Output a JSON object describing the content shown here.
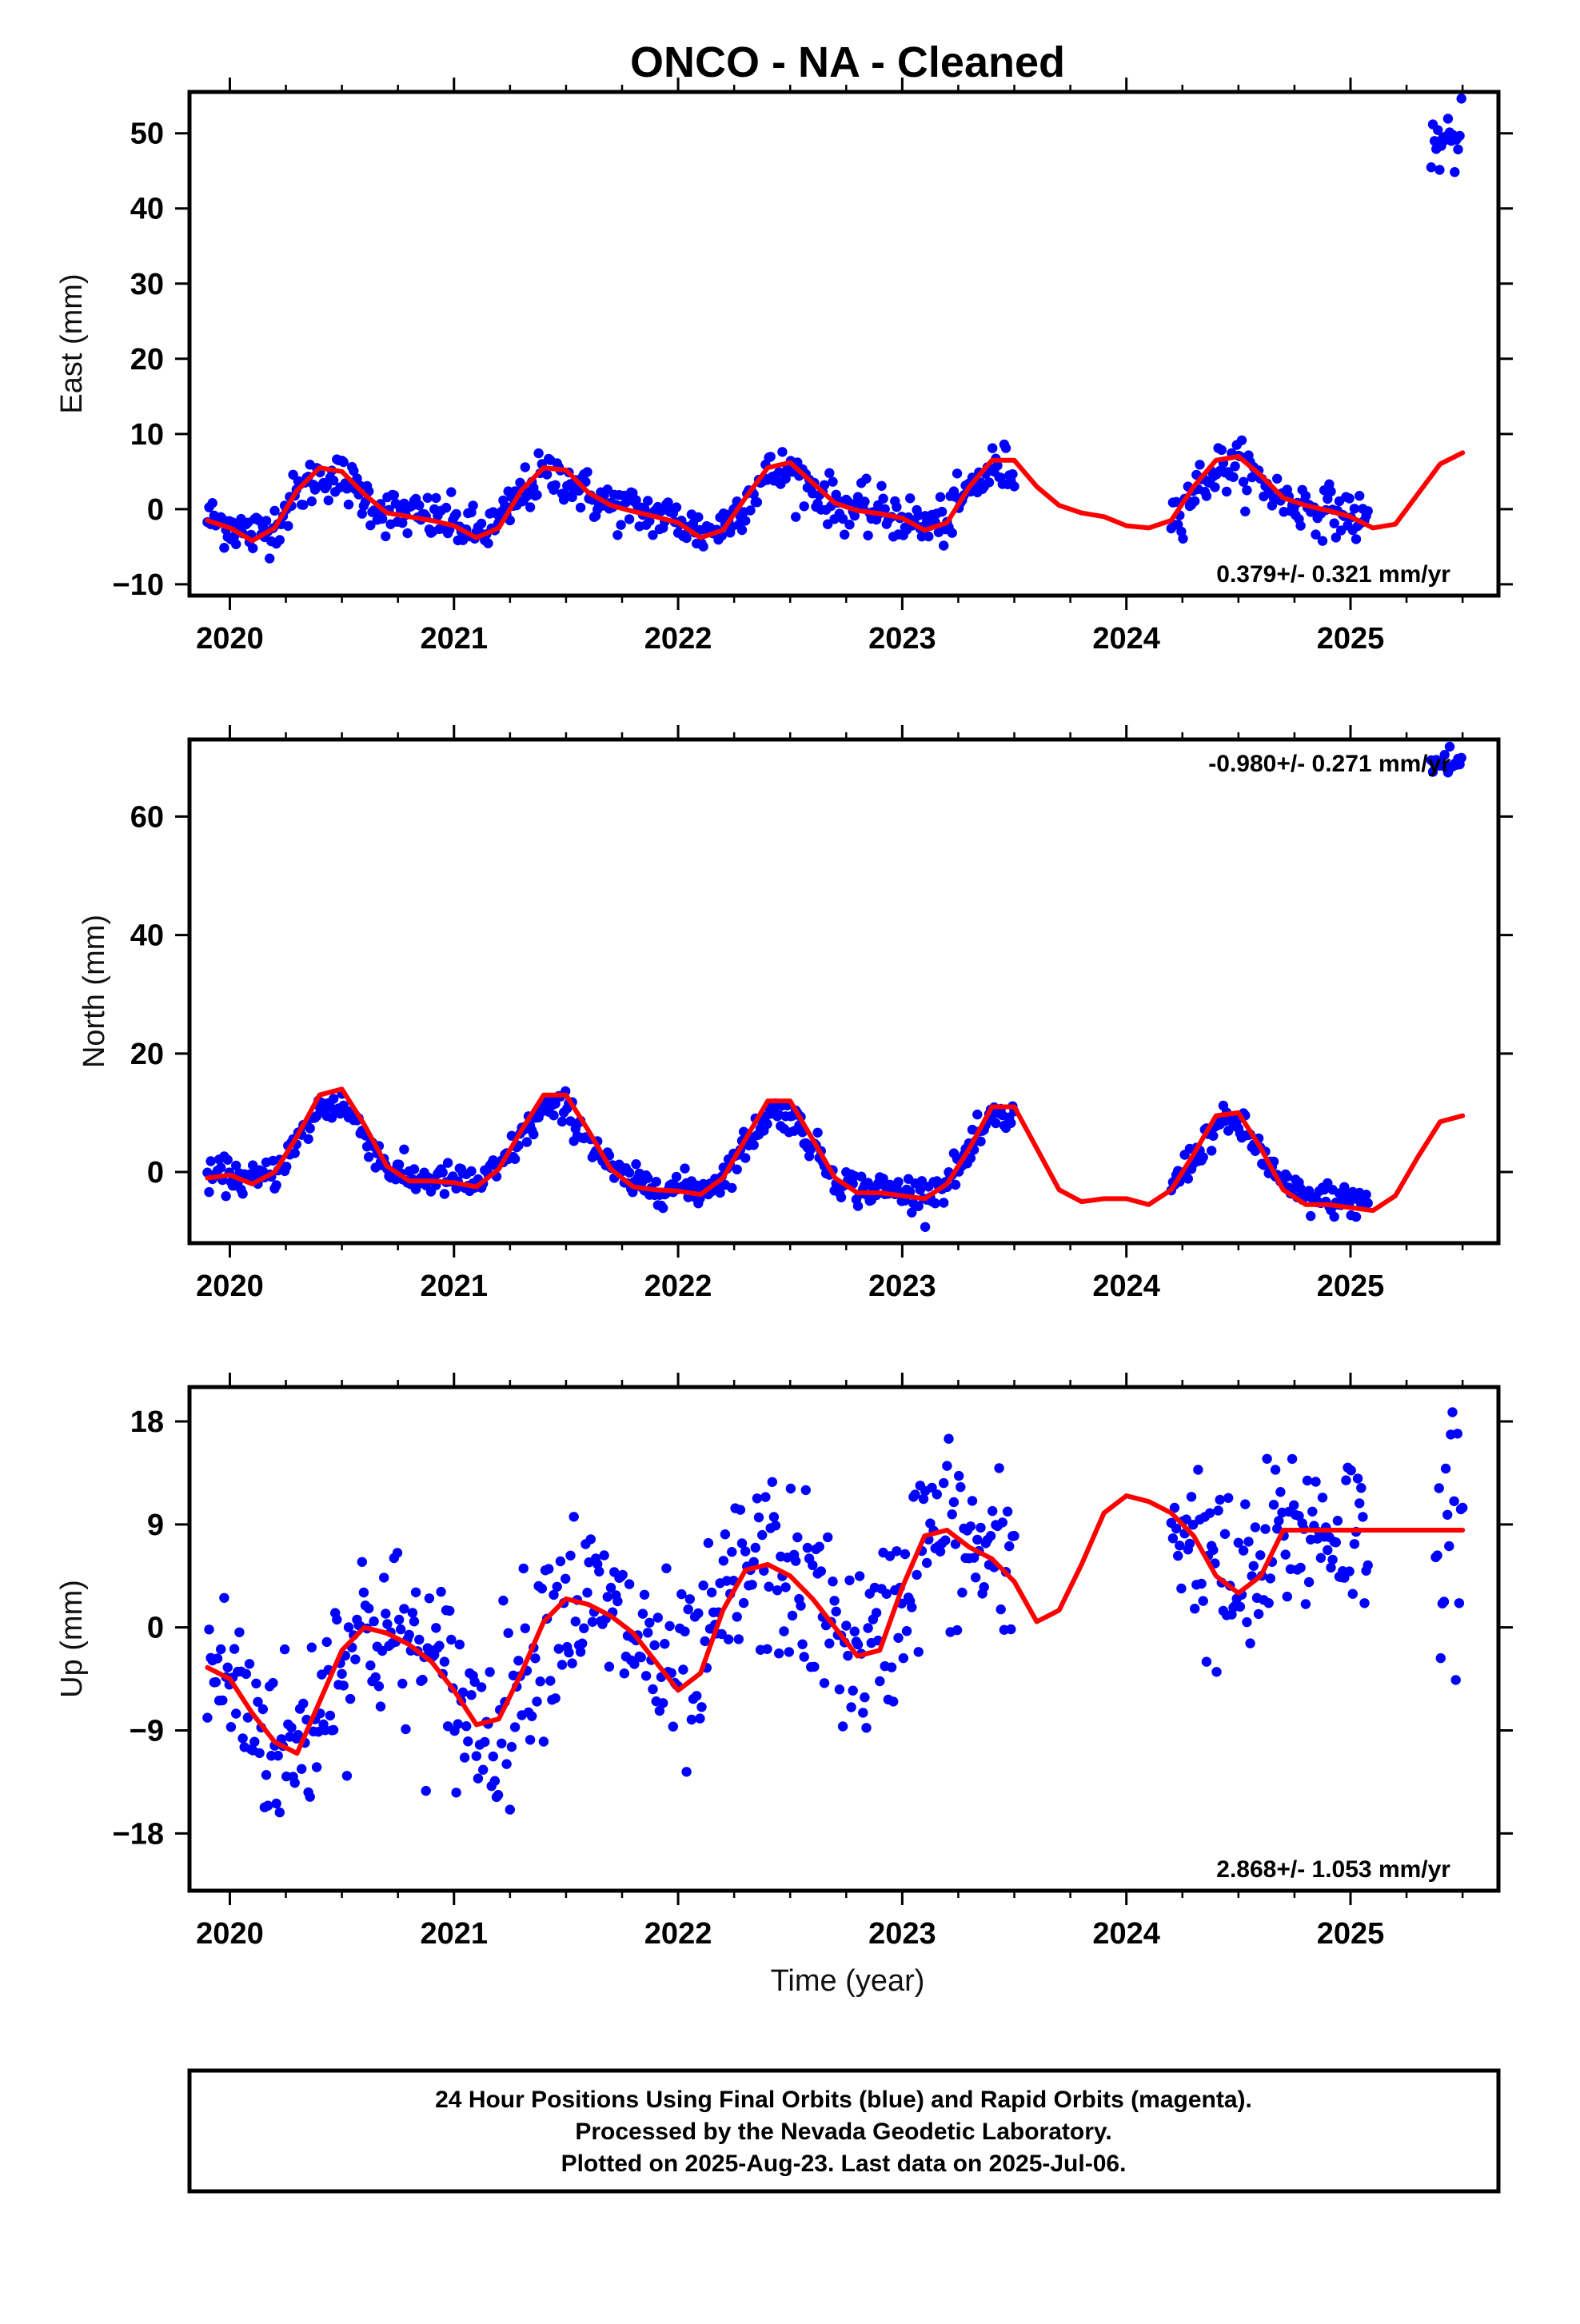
{
  "title": "ONCO  - NA - Cleaned",
  "xlabel": "Time (year)",
  "footer": {
    "lines": [
      "24 Hour Positions Using Final Orbits (blue) and Rapid Orbits (magenta).",
      "Processed by the Nevada Geodetic Laboratory.",
      "Plotted on 2025-Aug-23. Last data on 2025-Jul-06."
    ]
  },
  "colors": {
    "data": "#0000ff",
    "model": "#ff0000",
    "frame": "#000000"
  },
  "chart_data": [
    {
      "type": "scatter",
      "ylabel": "East (mm)",
      "rate_text": "0.379+/- 0.321 mm/yr",
      "rate_position": "bottom-right",
      "xlim": [
        2019.82,
        2025.66
      ],
      "ylim": [
        -11.5,
        55.5
      ],
      "xticks": [
        2020,
        2021,
        2022,
        2023,
        2024,
        2025
      ],
      "yticks": [
        -10,
        0,
        10,
        20,
        30,
        40,
        50
      ],
      "ytick_labels": [
        "−10",
        "0",
        "10",
        "20",
        "30",
        "40",
        "50"
      ],
      "model": {
        "x": [
          2019.9,
          2020.0,
          2020.1,
          2020.2,
          2020.3,
          2020.4,
          2020.5,
          2020.6,
          2020.7,
          2020.8,
          2020.9,
          2021.0,
          2021.1,
          2021.2,
          2021.3,
          2021.4,
          2021.5,
          2021.6,
          2021.7,
          2021.8,
          2021.9,
          2022.0,
          2022.1,
          2022.2,
          2022.3,
          2022.4,
          2022.5,
          2022.6,
          2022.7,
          2022.8,
          2022.9,
          2023.0,
          2023.1,
          2023.2,
          2023.3,
          2023.4,
          2023.5,
          2023.6,
          2023.7,
          2023.8,
          2023.9,
          2024.0,
          2024.1,
          2024.2,
          2024.3,
          2024.4,
          2024.5,
          2024.6,
          2024.7,
          2024.8,
          2024.9,
          2025.0,
          2025.1,
          2025.2,
          2025.3,
          2025.4,
          2025.5
        ],
        "y": [
          -1.5,
          -2.5,
          -4.2,
          -2.5,
          2.5,
          5.5,
          5.0,
          2.0,
          -0.5,
          -1.0,
          -1.5,
          -2.2,
          -3.8,
          -2.5,
          2.5,
          5.5,
          5.2,
          2.2,
          0.5,
          -0.3,
          -1.0,
          -1.8,
          -3.8,
          -2.8,
          1.5,
          5.5,
          6.2,
          3.5,
          0.8,
          -0.2,
          -0.6,
          -1.2,
          -2.8,
          -1.8,
          3.0,
          6.5,
          6.5,
          3.0,
          0.5,
          -0.5,
          -1.0,
          -2.2,
          -2.5,
          -1.5,
          3.0,
          6.5,
          7.0,
          4.5,
          1.5,
          0.5,
          -0.2,
          -1.0,
          -2.5,
          -2.0,
          2.0,
          6.0,
          7.5
        ]
      },
      "series": [
        {
          "name": "Final Orbits",
          "color": "#0000ff",
          "sigma": 1.6,
          "segments": [
            [
              2019.9,
              2023.5
            ],
            [
              2024.2,
              2025.08
            ]
          ]
        },
        {
          "name": "Rapid Orbits",
          "color": "#0000ff",
          "sigma": 2.4,
          "segments": [
            [
              2025.36,
              2025.5
            ]
          ],
          "level": 49
        }
      ]
    },
    {
      "type": "scatter",
      "ylabel": "North (mm)",
      "rate_text": "-0.980+/- 0.271 mm/yr",
      "rate_position": "top-right",
      "xlim": [
        2019.82,
        2025.66
      ],
      "ylim": [
        -12,
        73
      ],
      "xticks": [
        2020,
        2021,
        2022,
        2023,
        2024,
        2025
      ],
      "yticks": [
        0,
        20,
        40,
        60
      ],
      "ytick_labels": [
        "0",
        "20",
        "40",
        "60"
      ],
      "model": {
        "x": [
          2019.9,
          2020.0,
          2020.1,
          2020.2,
          2020.3,
          2020.4,
          2020.5,
          2020.6,
          2020.7,
          2020.8,
          2020.9,
          2021.0,
          2021.1,
          2021.2,
          2021.3,
          2021.4,
          2021.5,
          2021.6,
          2021.7,
          2021.8,
          2021.9,
          2022.0,
          2022.1,
          2022.2,
          2022.3,
          2022.4,
          2022.5,
          2022.6,
          2022.7,
          2022.8,
          2022.9,
          2023.0,
          2023.1,
          2023.2,
          2023.3,
          2023.4,
          2023.5,
          2023.6,
          2023.7,
          2023.8,
          2023.9,
          2024.0,
          2024.1,
          2024.2,
          2024.3,
          2024.4,
          2024.5,
          2024.6,
          2024.7,
          2024.8,
          2024.9,
          2025.0,
          2025.1,
          2025.2,
          2025.3,
          2025.4,
          2025.5
        ],
        "y": [
          -1.0,
          -0.5,
          -2.0,
          0.0,
          6.0,
          13.0,
          14.0,
          8.0,
          1.0,
          -1.5,
          -1.5,
          -1.8,
          -2.5,
          0.5,
          7.0,
          13.0,
          13.0,
          7.0,
          0.5,
          -2.5,
          -3.0,
          -3.2,
          -3.8,
          -1.0,
          5.5,
          12.0,
          12.0,
          5.5,
          -1.0,
          -3.5,
          -3.5,
          -4.0,
          -4.5,
          -2.0,
          4.0,
          11.0,
          11.0,
          4.0,
          -3.0,
          -5.0,
          -4.5,
          -4.5,
          -5.5,
          -3.0,
          3.0,
          9.5,
          10.0,
          4.0,
          -3.0,
          -5.5,
          -5.5,
          -6.0,
          -6.5,
          -4.0,
          2.5,
          8.5,
          9.5
        ]
      },
      "series": [
        {
          "name": "Final Orbits",
          "color": "#0000ff",
          "sigma": 1.4,
          "segments": [
            [
              2019.9,
              2023.5
            ],
            [
              2024.2,
              2025.08
            ]
          ]
        },
        {
          "name": "Rapid Orbits",
          "color": "#0000ff",
          "sigma": 1.6,
          "segments": [
            [
              2025.36,
              2025.5
            ]
          ],
          "level": 69
        }
      ]
    },
    {
      "type": "scatter",
      "ylabel": "Up (mm)",
      "rate_text": "2.868+/- 1.053 mm/yr",
      "rate_position": "bottom-right",
      "xlim": [
        2019.82,
        2025.66
      ],
      "ylim": [
        -23,
        21
      ],
      "xticks": [
        2020,
        2021,
        2022,
        2023,
        2024,
        2025
      ],
      "yticks": [
        -18,
        -9,
        0,
        9,
        18
      ],
      "ytick_labels": [
        "−18",
        "−9",
        "0",
        "9",
        "18"
      ],
      "model": {
        "x": [
          2019.9,
          2020.0,
          2020.1,
          2020.2,
          2020.3,
          2020.4,
          2020.5,
          2020.6,
          2020.7,
          2020.8,
          2020.9,
          2021.0,
          2021.1,
          2021.2,
          2021.3,
          2021.4,
          2021.5,
          2021.6,
          2021.7,
          2021.8,
          2021.9,
          2022.0,
          2022.1,
          2022.2,
          2022.3,
          2022.4,
          2022.5,
          2022.6,
          2022.7,
          2022.8,
          2022.9,
          2023.0,
          2023.1,
          2023.2,
          2023.3,
          2023.4,
          2023.5,
          2023.6,
          2023.7,
          2023.8,
          2023.9,
          2024.0,
          2024.1,
          2024.2,
          2024.3,
          2024.4,
          2024.5,
          2024.6,
          2024.7,
          2024.8,
          2024.9,
          2025.0,
          2025.1,
          2025.2,
          2025.3,
          2025.4,
          2025.5
        ],
        "y": [
          -3.5,
          -4.5,
          -7.5,
          -10.0,
          -11.0,
          -6.5,
          -2.0,
          0.0,
          -0.5,
          -1.5,
          -3.0,
          -5.5,
          -8.5,
          -8.0,
          -4.0,
          0.5,
          2.5,
          2.0,
          1.0,
          -0.5,
          -3.0,
          -5.5,
          -4.0,
          1.5,
          5.0,
          5.5,
          4.5,
          2.5,
          0.0,
          -2.5,
          -2.0,
          3.5,
          8.0,
          8.5,
          7.0,
          6.0,
          4.0,
          0.5,
          1.5,
          5.5,
          10.0,
          11.5,
          11.0,
          10.0,
          8.0,
          4.5,
          3.0,
          4.5,
          8.5,
          8.5,
          8.5,
          8.5,
          8.5,
          8.5,
          8.5,
          8.5,
          8.5
        ]
      },
      "series": [
        {
          "name": "Final Orbits",
          "color": "#0000ff",
          "sigma": 4.0,
          "segments": [
            [
              2019.9,
              2023.5
            ],
            [
              2024.2,
              2025.08
            ]
          ]
        },
        {
          "name": "Rapid Orbits",
          "color": "#0000ff",
          "sigma": 5.0,
          "segments": [
            [
              2025.38,
              2025.5
            ]
          ]
        }
      ]
    }
  ]
}
